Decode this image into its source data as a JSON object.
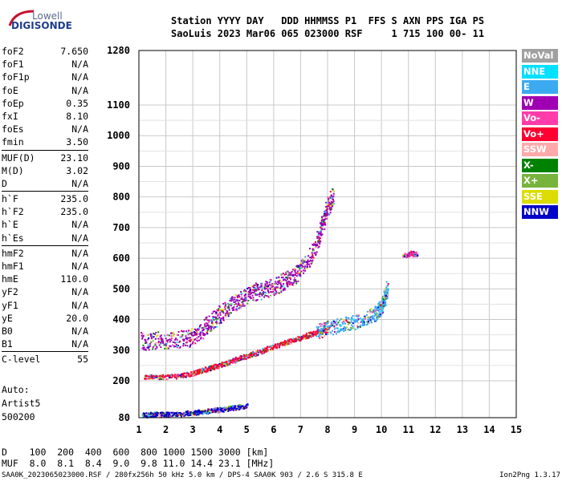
{
  "logo": {
    "line1": "Lowell",
    "line2": "DIGISONDE"
  },
  "header": {
    "line1": "Station YYYY DAY   DDD HHMMSS P1  FFS S AXN PPS IGA PS",
    "line2": "SaoLuis 2023 Mar06 065 023000 RSF     1 715 100 00- 11"
  },
  "params": [
    [
      {
        "k": "foF2",
        "v": "7.650"
      },
      {
        "k": "foF1",
        "v": "N/A"
      },
      {
        "k": "foF1p",
        "v": "N/A"
      },
      {
        "k": "foE",
        "v": "N/A"
      },
      {
        "k": "foEp",
        "v": "0.35"
      },
      {
        "k": "fxI",
        "v": "8.10"
      },
      {
        "k": "foEs",
        "v": "N/A"
      },
      {
        "k": "fmin",
        "v": "3.50"
      }
    ],
    [
      {
        "k": "MUF(D)",
        "v": "23.10"
      },
      {
        "k": "M(D)",
        "v": "3.02"
      },
      {
        "k": "D",
        "v": "N/A"
      }
    ],
    [
      {
        "k": "h`F",
        "v": "235.0"
      },
      {
        "k": "h`F2",
        "v": "235.0"
      },
      {
        "k": "h`E",
        "v": "N/A"
      },
      {
        "k": "h`Es",
        "v": "N/A"
      }
    ],
    [
      {
        "k": "hmF2",
        "v": "N/A"
      },
      {
        "k": "hmF1",
        "v": "N/A"
      },
      {
        "k": "hmE",
        "v": "110.0"
      },
      {
        "k": "yF2",
        "v": "N/A"
      },
      {
        "k": "yF1",
        "v": "N/A"
      },
      {
        "k": "yE",
        "v": "20.0"
      },
      {
        "k": "B0",
        "v": "N/A"
      },
      {
        "k": "B1",
        "v": "N/A"
      }
    ],
    [
      {
        "k": "C-level",
        "v": "55"
      }
    ]
  ],
  "info": {
    "l1": "Auto:",
    "l2": "Artist5",
    "l3": "500200"
  },
  "legend": [
    {
      "label": "NoVal",
      "color": "#a0a0a0"
    },
    {
      "label": "NNE",
      "color": "#00e0ff"
    },
    {
      "label": "E",
      "color": "#3caaf0"
    },
    {
      "label": "W",
      "color": "#a000b4"
    },
    {
      "label": "Vo-",
      "color": "#ff3caa"
    },
    {
      "label": "Vo+",
      "color": "#ff0032"
    },
    {
      "label": "SSW",
      "color": "#ffaaaa"
    },
    {
      "label": "X-",
      "color": "#008200"
    },
    {
      "label": "X+",
      "color": "#78b43c"
    },
    {
      "label": "SSE",
      "color": "#dcdc00"
    },
    {
      "label": "NNW",
      "color": "#0000c8"
    }
  ],
  "bottom": {
    "line1": "D    100  200  400  600  800 1000 1500 3000 [km]",
    "line2": "MUF  8.0  8.1  8.4  9.0  9.8 11.0 14.4 23.1 [MHz]"
  },
  "footer": {
    "left": "SAA0K_2023065023000.RSF / 280fx256h 50 kHz 5.0 km / DPS-4 SAA0K 903 / 2.6 S 315.8 E",
    "right": "Ion2Png 1.3.17"
  },
  "chart_data": {
    "type": "scatter",
    "title": "",
    "xlabel": "",
    "ylabel": "",
    "xlim": [
      1,
      15
    ],
    "x_ticks": [
      1,
      2,
      3,
      4,
      5,
      6,
      7,
      8,
      9,
      10,
      11,
      12,
      13,
      14,
      15
    ],
    "y_ticks": [
      80,
      200,
      300,
      400,
      500,
      600,
      700,
      800,
      900,
      1000,
      1100,
      1280
    ],
    "y_axis": {
      "segments": [
        [
          80,
          200
        ],
        [
          200,
          1100
        ],
        [
          1100,
          1280
        ]
      ]
    },
    "grid": true,
    "legend_position": "right",
    "traces": [
      {
        "color": "#0000c8",
        "points": [
          [
            1.1,
            82
          ],
          [
            1.5,
            84
          ],
          [
            2.0,
            85
          ],
          [
            2.5,
            86
          ],
          [
            3.0,
            90
          ],
          [
            3.5,
            95
          ],
          [
            4.0,
            100
          ],
          [
            4.5,
            106
          ],
          [
            5.0,
            112
          ]
        ]
      },
      {
        "color": "#ff0032",
        "points": [
          [
            1.2,
            205
          ],
          [
            1.8,
            206
          ],
          [
            2.5,
            210
          ],
          [
            3.0,
            218
          ],
          [
            3.2,
            225
          ],
          [
            3.6,
            235
          ],
          [
            4.0,
            245
          ],
          [
            4.5,
            260
          ],
          [
            5.0,
            275
          ],
          [
            5.5,
            290
          ],
          [
            6.0,
            305
          ],
          [
            6.5,
            320
          ],
          [
            7.0,
            335
          ],
          [
            7.5,
            350
          ],
          [
            8.0,
            360
          ]
        ]
      },
      {
        "color": "#a000b4",
        "points": [
          [
            1.1,
            302
          ],
          [
            1.6,
            304
          ],
          [
            2.2,
            306
          ],
          [
            2.8,
            310
          ],
          [
            3.2,
            330
          ],
          [
            3.6,
            360
          ],
          [
            4.0,
            390
          ],
          [
            4.4,
            420
          ],
          [
            4.8,
            440
          ],
          [
            5.2,
            460
          ],
          [
            5.6,
            470
          ],
          [
            6.0,
            480
          ],
          [
            6.4,
            500
          ],
          [
            6.8,
            520
          ],
          [
            7.2,
            560
          ],
          [
            7.6,
            620
          ],
          [
            7.8,
            690
          ],
          [
            8.0,
            740
          ],
          [
            8.2,
            780
          ]
        ]
      },
      {
        "color": "#3caaf0",
        "points": [
          [
            7.6,
            340
          ],
          [
            8.0,
            350
          ],
          [
            8.5,
            360
          ],
          [
            9.0,
            370
          ],
          [
            9.5,
            385
          ],
          [
            9.8,
            400
          ],
          [
            10.0,
            420
          ],
          [
            10.1,
            450
          ],
          [
            10.2,
            480
          ]
        ]
      },
      {
        "color": "#ff3caa",
        "points": [
          [
            10.8,
            600
          ],
          [
            11.1,
            610
          ],
          [
            11.3,
            605
          ]
        ]
      }
    ]
  }
}
